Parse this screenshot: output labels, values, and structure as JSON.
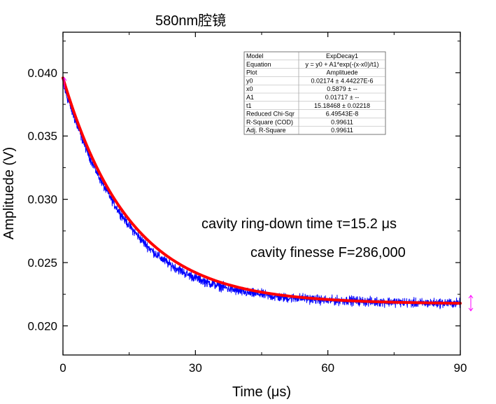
{
  "chart_data": {
    "type": "line",
    "title": "580nm腔镜",
    "xlabel": "Time (μs)",
    "ylabel": "Amplituede (V)",
    "xlim": [
      0,
      90
    ],
    "ylim": [
      0.0177,
      0.0432
    ],
    "x_ticks": [
      0,
      30,
      60,
      90
    ],
    "x_tick_labels": [
      "0",
      "30",
      "60",
      "90"
    ],
    "y_ticks": [
      0.02,
      0.025,
      0.03,
      0.035,
      0.04
    ],
    "y_tick_labels": [
      "0.020",
      "0.025",
      "0.030",
      "0.035",
      "0.040"
    ],
    "grid": false,
    "series": [
      {
        "role": "measured",
        "color": "#0000ff",
        "x": [
          0,
          1,
          2,
          3,
          4,
          5,
          6,
          7,
          8,
          9,
          10,
          12,
          14,
          16,
          18,
          20,
          22,
          24,
          26,
          28,
          30,
          33,
          36,
          39,
          42,
          45,
          48,
          51,
          54,
          57,
          60,
          65,
          70,
          75,
          80,
          85,
          90
        ],
        "values": [
          0.0391,
          0.038,
          0.037,
          0.036,
          0.0351,
          0.0342,
          0.0334,
          0.0326,
          0.0319,
          0.0312,
          0.0306,
          0.0294,
          0.0284,
          0.0275,
          0.0267,
          0.026,
          0.0254,
          0.0249,
          0.0245,
          0.0241,
          0.0238,
          0.0234,
          0.0231,
          0.0228,
          0.0226,
          0.0225,
          0.0223,
          0.0222,
          0.0222,
          0.0221,
          0.022,
          0.022,
          0.0219,
          0.0219,
          0.0218,
          0.0218,
          0.0218
        ],
        "noise_amplitude": 0.0004
      },
      {
        "role": "fit",
        "color": "#ff0000",
        "model": "ExpDecay1",
        "params": {
          "y0": 0.02174,
          "x0": 0.5879,
          "A1": 0.01717,
          "t1": 15.18468
        },
        "x_range": [
          0,
          90
        ]
      }
    ],
    "fit_table": [
      {
        "label": "Model",
        "value": "ExpDecay1"
      },
      {
        "label": "Equation",
        "value": "y = y0 + A1*exp(-(x-x0)/t1)"
      },
      {
        "label": "Plot",
        "value": "Amplituede"
      },
      {
        "label": "y0",
        "value": "0.02174 ± 4.44227E-6"
      },
      {
        "label": "x0",
        "value": "0.5879 ± --"
      },
      {
        "label": "A1",
        "value": "0.01717 ± --"
      },
      {
        "label": "t1",
        "value": "15.18468 ± 0.02218"
      },
      {
        "label": "Reduced Chi-Sqr",
        "value": "6.49543E-8"
      },
      {
        "label": "R-Square (COD)",
        "value": "0.99611"
      },
      {
        "label": "Adj. R-Square",
        "value": "0.99611"
      }
    ],
    "annotations": [
      "cavity ring-down time τ=15.2 μs",
      "cavity finesse F=286,000"
    ],
    "marker_color": "#ff00ff"
  }
}
